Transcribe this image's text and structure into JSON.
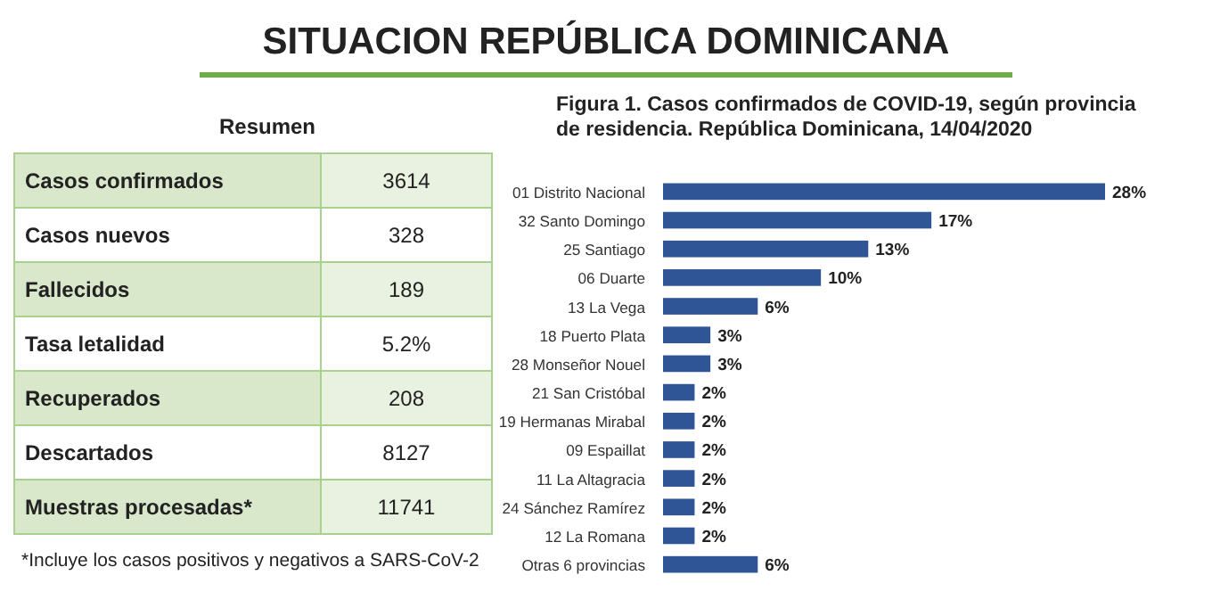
{
  "chart_data": [
    {
      "type": "other",
      "title": "SITUACION REPÚBLICA DOMINICANA",
      "subtitle": "Resumen",
      "categories": [
        "Casos confirmados",
        "Casos nuevos",
        "Fallecidos",
        "Tasa letalidad",
        "Recuperados",
        "Descartados",
        "Muestras procesadas*"
      ],
      "value_labels": [
        "3614",
        "328",
        "189",
        "5.2%",
        "208",
        "8127",
        "11741"
      ],
      "annotations": [
        "*Incluye los casos positivos y negativos a SARS-CoV-2"
      ]
    },
    {
      "type": "bar",
      "orientation": "horizontal",
      "title": "Figura 1. Casos confirmados de COVID-19, según provincia de residencia. República Dominicana, 14/04/2020",
      "categories": [
        "01 Distrito Nacional",
        "32 Santo Domingo",
        "25 Santiago",
        "06 Duarte",
        "13 La Vega",
        "18 Puerto Plata",
        "28 Monseñor Nouel",
        "21 San Cristóbal",
        "19 Hermanas Mirabal",
        "09 Espaillat",
        "11 La Altagracia",
        "24 Sánchez Ramírez",
        "12 La Romana",
        "Otras 6 provincias"
      ],
      "values": [
        28,
        17,
        13,
        10,
        6,
        3,
        3,
        2,
        2,
        2,
        2,
        2,
        2,
        6
      ],
      "value_labels": [
        "28%",
        "17%",
        "13%",
        "10%",
        "6%",
        "3%",
        "3%",
        "2%",
        "2%",
        "2%",
        "2%",
        "2%",
        "2%",
        "6%"
      ],
      "color": "#2f5597"
    }
  ]
}
